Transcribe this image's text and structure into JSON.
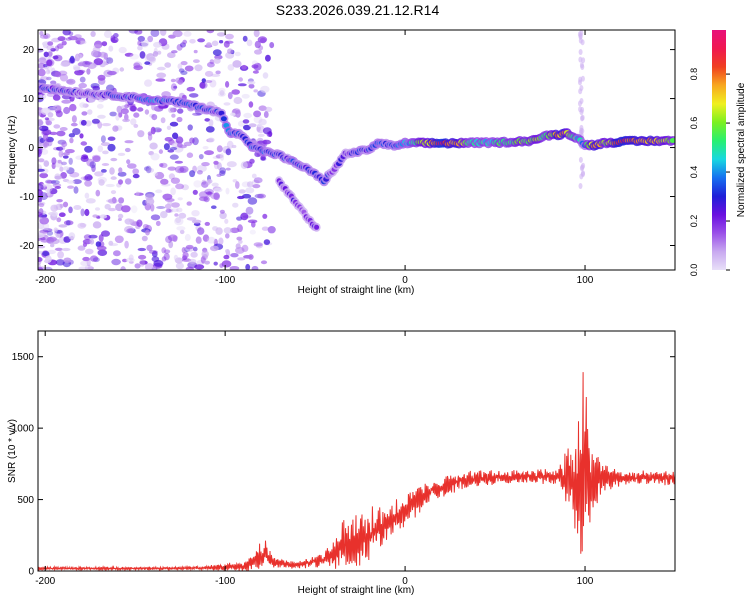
{
  "title": "S233.2026.039.21.12.R14",
  "colors": {
    "snr_line": "#e8312c",
    "frame": "#000000"
  },
  "chart_data": [
    {
      "type": "heatmap",
      "title": "S233.2026.039.21.12.R14",
      "xlabel": "Height of straight line (km)",
      "ylabel": "Frequency (Hz)",
      "xlim": [
        -204,
        150
      ],
      "ylim": [
        -25,
        24
      ],
      "xticks": [
        -200,
        -100,
        0,
        100
      ],
      "yticks": [
        -20,
        -10,
        0,
        10,
        20
      ],
      "colorbar": {
        "label": "Normalized spectral amplitude",
        "range": [
          0,
          0.98
        ],
        "ticks": [
          "0.0",
          "0.2",
          "0.4",
          "0.6",
          "0.8"
        ],
        "colormap": [
          "#e8e0f8",
          "#c8a8f0",
          "#9a50e8",
          "#6a10e0",
          "#1f1fd8",
          "#1670f0",
          "#18d8e0",
          "#28f070",
          "#7cf020",
          "#f0f020",
          "#f8a820",
          "#f04020",
          "#f01850",
          "#e8107a"
        ]
      },
      "ridge": [
        {
          "x": -205,
          "f": 12.5,
          "a": 0.25
        },
        {
          "x": -190,
          "f": 11.6,
          "a": 0.3
        },
        {
          "x": -175,
          "f": 11.0,
          "a": 0.22
        },
        {
          "x": -160,
          "f": 10.6,
          "a": 0.32
        },
        {
          "x": -150,
          "f": 10.2,
          "a": 0.3
        },
        {
          "x": -140,
          "f": 9.6,
          "a": 0.38
        },
        {
          "x": -130,
          "f": 9.5,
          "a": 0.32
        },
        {
          "x": -120,
          "f": 8.8,
          "a": 0.34
        },
        {
          "x": -110,
          "f": 7.8,
          "a": 0.3
        },
        {
          "x": -102,
          "f": 7.0,
          "a": 0.28
        },
        {
          "x": -98,
          "f": 3.2,
          "a": 0.4
        },
        {
          "x": -90,
          "f": 2.5,
          "a": 0.3
        },
        {
          "x": -85,
          "f": 0.2,
          "a": 0.36
        },
        {
          "x": -78,
          "f": -0.8,
          "a": 0.33
        },
        {
          "x": -70,
          "f": -1.5,
          "a": 0.28
        },
        {
          "x": -62,
          "f": -3.0,
          "a": 0.3
        },
        {
          "x": -55,
          "f": -4.2,
          "a": 0.26
        },
        {
          "x": -45,
          "f": -6.8,
          "a": 0.28
        },
        {
          "x": -38,
          "f": -3.8,
          "a": 0.22
        },
        {
          "x": -33,
          "f": -1.3,
          "a": 0.24
        },
        {
          "x": -25,
          "f": -0.8,
          "a": 0.32
        },
        {
          "x": -20,
          "f": -0.3,
          "a": 0.3
        },
        {
          "x": -14,
          "f": 1.0,
          "a": 0.34
        },
        {
          "x": -6,
          "f": 0.2,
          "a": 0.33
        },
        {
          "x": 0,
          "f": 0.9,
          "a": 0.4
        },
        {
          "x": 10,
          "f": 0.9,
          "a": 0.6
        },
        {
          "x": 20,
          "f": 0.9,
          "a": 0.9
        },
        {
          "x": 30,
          "f": 0.9,
          "a": 0.7
        },
        {
          "x": 40,
          "f": 1.0,
          "a": 0.45
        },
        {
          "x": 50,
          "f": 1.0,
          "a": 0.5
        },
        {
          "x": 60,
          "f": 1.2,
          "a": 0.55
        },
        {
          "x": 70,
          "f": 1.4,
          "a": 0.6
        },
        {
          "x": 80,
          "f": 2.5,
          "a": 0.55
        },
        {
          "x": 85,
          "f": 2.6,
          "a": 0.75
        },
        {
          "x": 90,
          "f": 3.0,
          "a": 0.7
        },
        {
          "x": 96,
          "f": 1.8,
          "a": 0.45
        },
        {
          "x": 100,
          "f": 0.6,
          "a": 0.4
        },
        {
          "x": 105,
          "f": 0.5,
          "a": 0.8
        },
        {
          "x": 112,
          "f": 1.0,
          "a": 0.6
        },
        {
          "x": 120,
          "f": 1.2,
          "a": 0.85
        },
        {
          "x": 130,
          "f": 1.3,
          "a": 0.8
        },
        {
          "x": 140,
          "f": 1.4,
          "a": 0.7
        },
        {
          "x": 150,
          "f": 1.4,
          "a": 0.6
        }
      ],
      "branch": [
        {
          "x": -70,
          "f": -7.0,
          "a": 0.2
        },
        {
          "x": -62,
          "f": -10.5,
          "a": 0.22
        },
        {
          "x": -55,
          "f": -14.0,
          "a": 0.2
        },
        {
          "x": -48,
          "f": -17.0,
          "a": 0.22
        }
      ]
    },
    {
      "type": "line",
      "title": "",
      "xlabel": "Height of straight line (km)",
      "ylabel": "SNR (10 * v/v)",
      "xlim": [
        -204,
        150
      ],
      "ylim": [
        0,
        1680
      ],
      "xticks": [
        -200,
        -100,
        0,
        100
      ],
      "yticks": [
        0,
        500,
        1000,
        1500
      ],
      "series": [
        {
          "name": "SNR",
          "color": "#e8312c",
          "envelope": [
            {
              "x": -204,
              "base": 18,
              "amp": 12
            },
            {
              "x": -130,
              "base": 18,
              "amp": 12
            },
            {
              "x": -110,
              "base": 22,
              "amp": 15
            },
            {
              "x": -90,
              "base": 35,
              "amp": 40
            },
            {
              "x": -78,
              "base": 120,
              "amp": 110
            },
            {
              "x": -72,
              "base": 60,
              "amp": 40
            },
            {
              "x": -60,
              "base": 40,
              "amp": 25
            },
            {
              "x": -45,
              "base": 80,
              "amp": 60
            },
            {
              "x": -35,
              "base": 180,
              "amp": 180
            },
            {
              "x": -20,
              "base": 260,
              "amp": 230
            },
            {
              "x": -10,
              "base": 340,
              "amp": 160
            },
            {
              "x": 0,
              "base": 430,
              "amp": 130
            },
            {
              "x": 15,
              "base": 560,
              "amp": 90
            },
            {
              "x": 30,
              "base": 630,
              "amp": 70
            },
            {
              "x": 50,
              "base": 655,
              "amp": 55
            },
            {
              "x": 70,
              "base": 665,
              "amp": 50
            },
            {
              "x": 85,
              "base": 660,
              "amp": 70
            },
            {
              "x": 92,
              "base": 640,
              "amp": 300
            },
            {
              "x": 97,
              "base": 560,
              "amp": 520
            },
            {
              "x": 100,
              "base": 780,
              "amp": 880
            },
            {
              "x": 103,
              "base": 600,
              "amp": 420
            },
            {
              "x": 108,
              "base": 655,
              "amp": 130
            },
            {
              "x": 120,
              "base": 650,
              "amp": 60
            },
            {
              "x": 150,
              "base": 650,
              "amp": 50
            }
          ]
        }
      ]
    }
  ]
}
